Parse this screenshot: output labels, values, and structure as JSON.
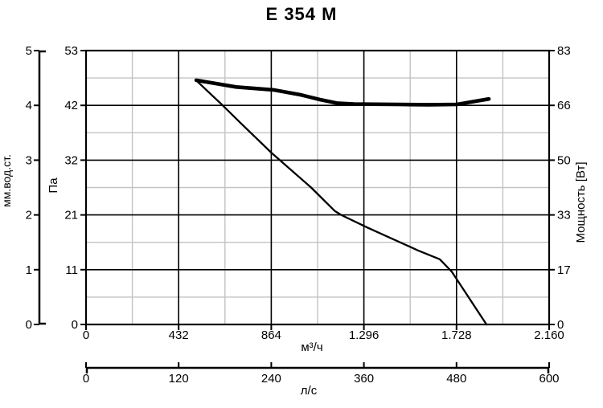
{
  "chart_data": {
    "type": "line",
    "title": "E 354 M",
    "grid": {
      "major": true,
      "minor": true,
      "major_color": "#000000",
      "minor_color": "#c3c3c3"
    },
    "colors": {
      "background": "#ffffff",
      "foreground": "#000000",
      "curve": "#000000"
    },
    "axes": {
      "left_outer": {
        "label": "мм.вод.ст.",
        "ticks": [
          0,
          1,
          2,
          3,
          4,
          5
        ],
        "range": [
          0,
          5
        ]
      },
      "left_inner": {
        "label": "Па",
        "ticks": [
          0,
          11,
          21,
          32,
          42,
          53
        ],
        "range": [
          0,
          53
        ]
      },
      "right": {
        "label": "Мощность [Вт]",
        "ticks": [
          0,
          17,
          33,
          50,
          66,
          83
        ],
        "range": [
          0,
          83
        ]
      },
      "x_primary": {
        "label": "м³/ч",
        "tick_labels": [
          "0",
          "432",
          "864",
          "1.296",
          "1.728",
          "2.160"
        ],
        "tick_values": [
          0,
          432,
          864,
          1296,
          1728,
          2160
        ],
        "range": [
          0,
          2160
        ]
      },
      "x_secondary": {
        "label": "л/с",
        "tick_labels": [
          "0",
          "120",
          "240",
          "360",
          "480",
          "600"
        ],
        "tick_values": [
          0,
          120,
          240,
          360,
          480,
          600
        ],
        "range": [
          0,
          600
        ]
      }
    },
    "series": [
      {
        "name": "pressure-curve",
        "y_axis": "left_inner",
        "unit": "Па",
        "stroke_width": 2.3,
        "points": [
          [
            514,
            47.0
          ],
          [
            630,
            42.3
          ],
          [
            723,
            38.7
          ],
          [
            866,
            33.3
          ],
          [
            1050,
            26.5
          ],
          [
            1160,
            21.8
          ],
          [
            1190,
            21.0
          ],
          [
            1312,
            18.7
          ],
          [
            1549,
            14.5
          ],
          [
            1650,
            12.9
          ],
          [
            1706,
            10.6
          ],
          [
            1868,
            0
          ]
        ]
      },
      {
        "name": "power-curve",
        "y_axis": "right",
        "unit": "Вт",
        "stroke_width": 4.6,
        "points": [
          [
            514,
            73.8
          ],
          [
            700,
            71.7
          ],
          [
            874,
            70.8
          ],
          [
            1000,
            69.3
          ],
          [
            1091,
            67.8
          ],
          [
            1170,
            66.7
          ],
          [
            1250,
            66.4
          ],
          [
            1450,
            66.3
          ],
          [
            1600,
            66.2
          ],
          [
            1730,
            66.3
          ],
          [
            1879,
            68.0
          ]
        ]
      }
    ]
  }
}
